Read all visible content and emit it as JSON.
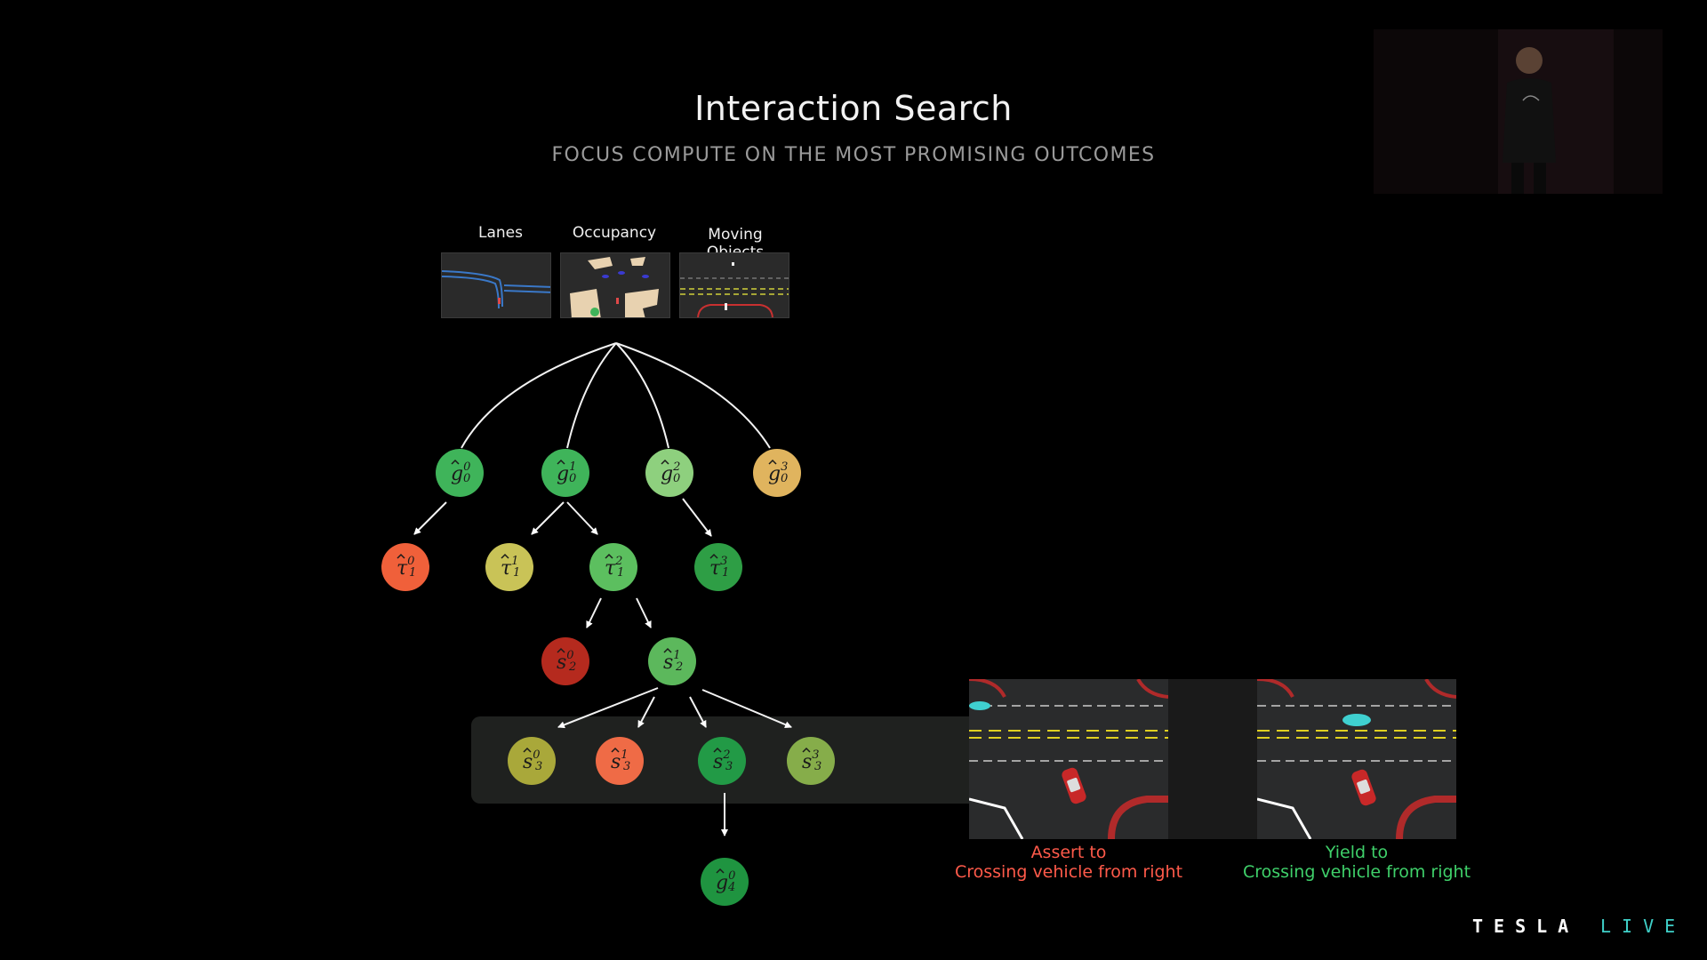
{
  "slide": {
    "title": "Interaction Search",
    "subtitle": "FOCUS COMPUTE ON THE MOST PROMISING OUTCOMES"
  },
  "inputs": {
    "labels": [
      "Lanes",
      "Occupancy",
      "Moving Objects"
    ]
  },
  "tree": {
    "nodes": [
      {
        "id": "g0-0",
        "base": "g",
        "sup": "0",
        "sub": "0",
        "color": "#3fb45a"
      },
      {
        "id": "g0-1",
        "base": "g",
        "sup": "1",
        "sub": "0",
        "color": "#3fb45a"
      },
      {
        "id": "g0-2",
        "base": "g",
        "sup": "2",
        "sub": "0",
        "color": "#8ed07e"
      },
      {
        "id": "g0-3",
        "base": "g",
        "sup": "3",
        "sub": "0",
        "color": "#e0b45e"
      },
      {
        "id": "t1-0",
        "base": "τ",
        "sup": "0",
        "sub": "1",
        "color": "#f0603a"
      },
      {
        "id": "t1-1",
        "base": "τ",
        "sup": "1",
        "sub": "1",
        "color": "#c9c357"
      },
      {
        "id": "t1-2",
        "base": "τ",
        "sup": "2",
        "sub": "1",
        "color": "#5cbf5f"
      },
      {
        "id": "t1-3",
        "base": "τ",
        "sup": "3",
        "sub": "1",
        "color": "#2e9e45"
      },
      {
        "id": "s2-0",
        "base": "s",
        "sup": "0",
        "sub": "2",
        "color": "#b52a1e"
      },
      {
        "id": "s2-1",
        "base": "s",
        "sup": "1",
        "sub": "2",
        "color": "#5cb85c"
      },
      {
        "id": "s3-0",
        "base": "s",
        "sup": "0",
        "sub": "3",
        "color": "#a9a83a"
      },
      {
        "id": "s3-1",
        "base": "s",
        "sup": "1",
        "sub": "3",
        "color": "#ef6b46"
      },
      {
        "id": "s3-2",
        "base": "s",
        "sup": "2",
        "sub": "3",
        "color": "#229a46"
      },
      {
        "id": "s3-3",
        "base": "s",
        "sup": "3",
        "sub": "3",
        "color": "#86ad4a"
      },
      {
        "id": "g4-0",
        "base": "g",
        "sup": "0",
        "sub": "4",
        "color": "#1f9440"
      }
    ]
  },
  "outcomes": [
    {
      "line1": "Assert to",
      "line2": "Crossing vehicle from right",
      "color": "#ff5a4a"
    },
    {
      "line1": "Yield to",
      "line2": "Crossing vehicle from right",
      "color": "#3fd06a"
    }
  ],
  "branding": {
    "brand": "TESLA",
    "event": "LIVE",
    "brand_color": "#ffffff",
    "event_color": "#3fd0c8"
  }
}
